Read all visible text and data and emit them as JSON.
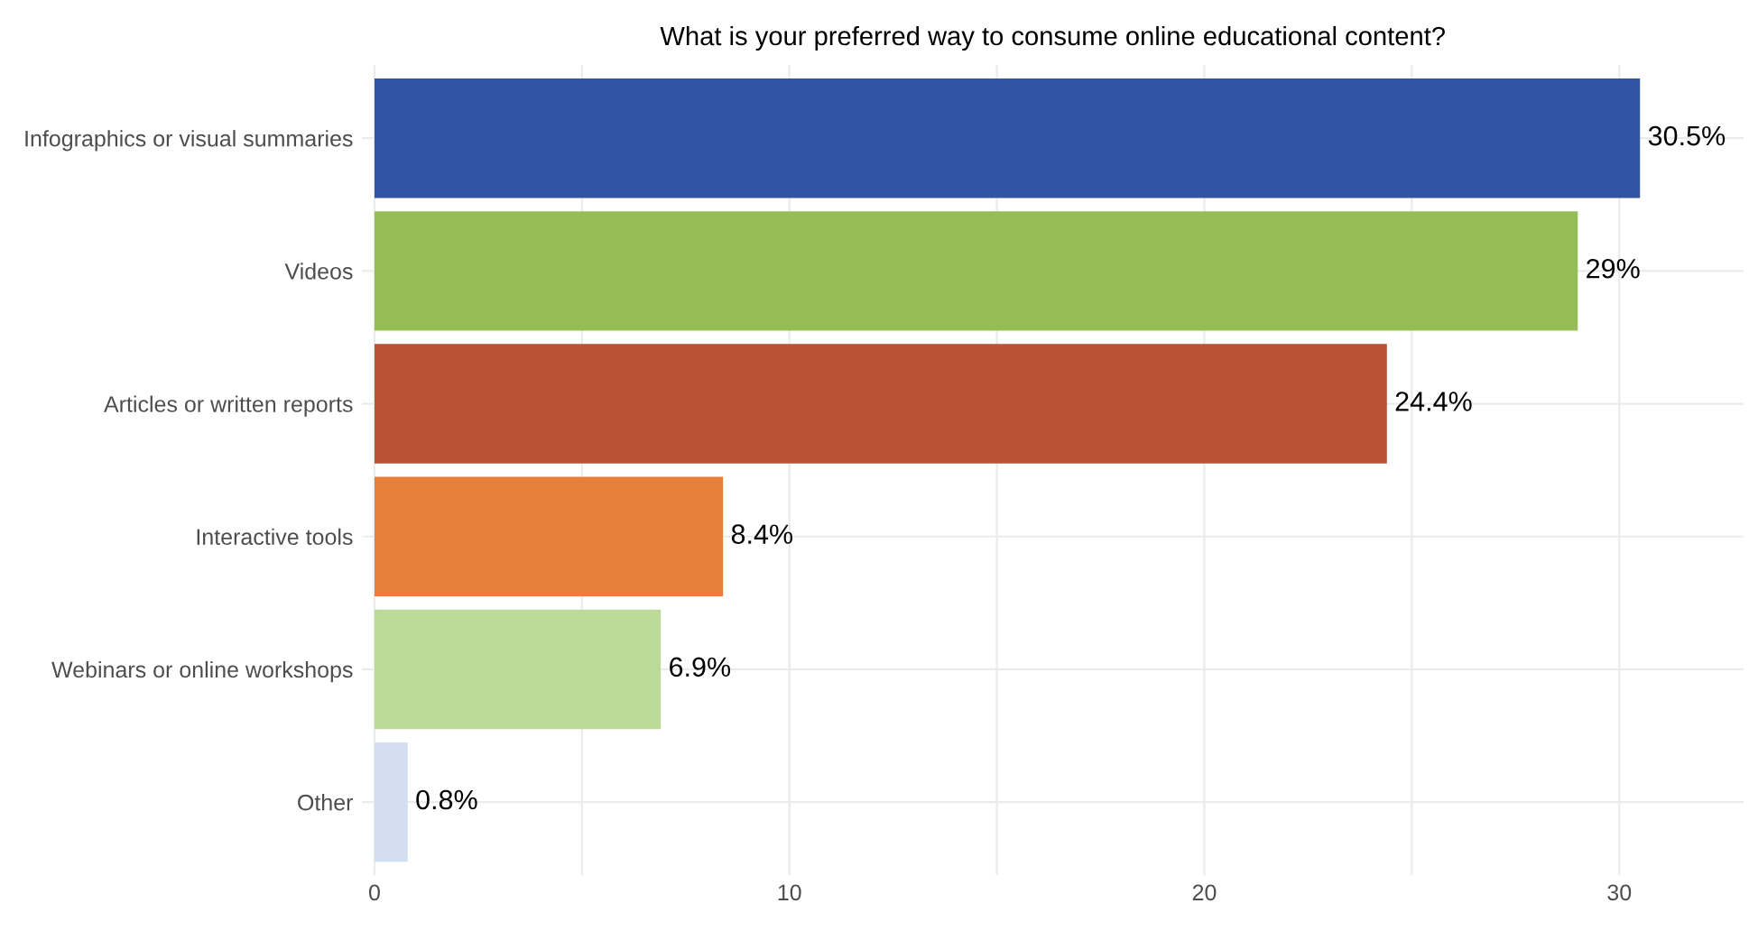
{
  "chart_data": {
    "type": "bar",
    "orientation": "horizontal",
    "title": "What is your preferred way to consume online educational content?",
    "categories": [
      "Infographics or visual summaries",
      "Videos",
      "Articles or written reports",
      "Interactive tools",
      "Webinars or online workshops",
      "Other"
    ],
    "values": [
      30.5,
      29,
      24.4,
      8.4,
      6.9,
      0.8
    ],
    "colors": [
      "#3155a3",
      "#94be55",
      "#b85435",
      "#e57f3a",
      "#bdd998",
      "#d3dff0"
    ],
    "value_labels": [
      "30.5%",
      "29%",
      "24.4%",
      "8.4%",
      "6.9%",
      "0.8%"
    ],
    "xlim": [
      -0.3,
      33
    ],
    "xticks": [
      0,
      {
        "value": 5,
        "label": null
      },
      10,
      {
        "value": 15,
        "label": null
      },
      20,
      {
        "value": 25,
        "label": null
      },
      30
    ],
    "grid": true
  }
}
